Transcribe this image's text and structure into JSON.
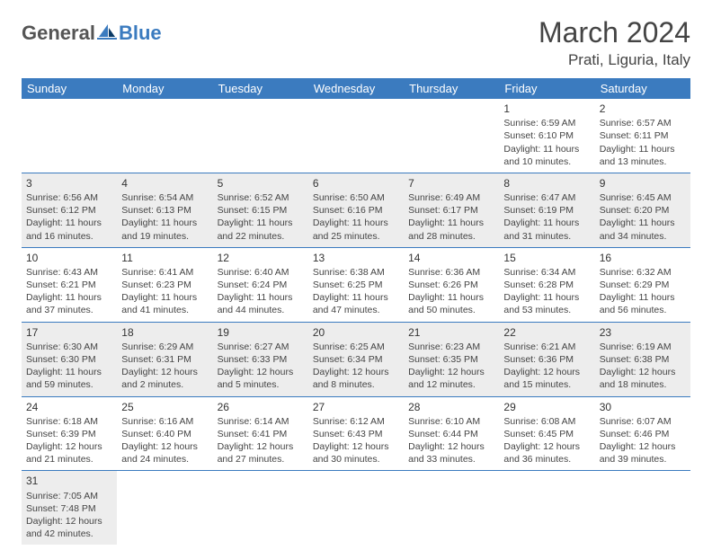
{
  "brand": {
    "part1": "General",
    "part2": "Blue",
    "part1_color": "#555555",
    "part2_color": "#3b7bbf",
    "sail_fill": "#3b7bbf",
    "sail_dark": "#0b3a66"
  },
  "title": "March 2024",
  "location": "Prati, Liguria, Italy",
  "colors": {
    "header_bg": "#3b7bbf",
    "header_text": "#ffffff",
    "row_shade": "#ededed",
    "row_plain": "#ffffff",
    "border": "#3b7bbf",
    "text": "#444444"
  },
  "weekdays": [
    "Sunday",
    "Monday",
    "Tuesday",
    "Wednesday",
    "Thursday",
    "Friday",
    "Saturday"
  ],
  "weeks": [
    {
      "shade": false,
      "cells": [
        null,
        null,
        null,
        null,
        null,
        {
          "n": "1",
          "sr": "Sunrise: 6:59 AM",
          "ss": "Sunset: 6:10 PM",
          "dl1": "Daylight: 11 hours",
          "dl2": "and 10 minutes."
        },
        {
          "n": "2",
          "sr": "Sunrise: 6:57 AM",
          "ss": "Sunset: 6:11 PM",
          "dl1": "Daylight: 11 hours",
          "dl2": "and 13 minutes."
        }
      ]
    },
    {
      "shade": true,
      "cells": [
        {
          "n": "3",
          "sr": "Sunrise: 6:56 AM",
          "ss": "Sunset: 6:12 PM",
          "dl1": "Daylight: 11 hours",
          "dl2": "and 16 minutes."
        },
        {
          "n": "4",
          "sr": "Sunrise: 6:54 AM",
          "ss": "Sunset: 6:13 PM",
          "dl1": "Daylight: 11 hours",
          "dl2": "and 19 minutes."
        },
        {
          "n": "5",
          "sr": "Sunrise: 6:52 AM",
          "ss": "Sunset: 6:15 PM",
          "dl1": "Daylight: 11 hours",
          "dl2": "and 22 minutes."
        },
        {
          "n": "6",
          "sr": "Sunrise: 6:50 AM",
          "ss": "Sunset: 6:16 PM",
          "dl1": "Daylight: 11 hours",
          "dl2": "and 25 minutes."
        },
        {
          "n": "7",
          "sr": "Sunrise: 6:49 AM",
          "ss": "Sunset: 6:17 PM",
          "dl1": "Daylight: 11 hours",
          "dl2": "and 28 minutes."
        },
        {
          "n": "8",
          "sr": "Sunrise: 6:47 AM",
          "ss": "Sunset: 6:19 PM",
          "dl1": "Daylight: 11 hours",
          "dl2": "and 31 minutes."
        },
        {
          "n": "9",
          "sr": "Sunrise: 6:45 AM",
          "ss": "Sunset: 6:20 PM",
          "dl1": "Daylight: 11 hours",
          "dl2": "and 34 minutes."
        }
      ]
    },
    {
      "shade": false,
      "cells": [
        {
          "n": "10",
          "sr": "Sunrise: 6:43 AM",
          "ss": "Sunset: 6:21 PM",
          "dl1": "Daylight: 11 hours",
          "dl2": "and 37 minutes."
        },
        {
          "n": "11",
          "sr": "Sunrise: 6:41 AM",
          "ss": "Sunset: 6:23 PM",
          "dl1": "Daylight: 11 hours",
          "dl2": "and 41 minutes."
        },
        {
          "n": "12",
          "sr": "Sunrise: 6:40 AM",
          "ss": "Sunset: 6:24 PM",
          "dl1": "Daylight: 11 hours",
          "dl2": "and 44 minutes."
        },
        {
          "n": "13",
          "sr": "Sunrise: 6:38 AM",
          "ss": "Sunset: 6:25 PM",
          "dl1": "Daylight: 11 hours",
          "dl2": "and 47 minutes."
        },
        {
          "n": "14",
          "sr": "Sunrise: 6:36 AM",
          "ss": "Sunset: 6:26 PM",
          "dl1": "Daylight: 11 hours",
          "dl2": "and 50 minutes."
        },
        {
          "n": "15",
          "sr": "Sunrise: 6:34 AM",
          "ss": "Sunset: 6:28 PM",
          "dl1": "Daylight: 11 hours",
          "dl2": "and 53 minutes."
        },
        {
          "n": "16",
          "sr": "Sunrise: 6:32 AM",
          "ss": "Sunset: 6:29 PM",
          "dl1": "Daylight: 11 hours",
          "dl2": "and 56 minutes."
        }
      ]
    },
    {
      "shade": true,
      "cells": [
        {
          "n": "17",
          "sr": "Sunrise: 6:30 AM",
          "ss": "Sunset: 6:30 PM",
          "dl1": "Daylight: 11 hours",
          "dl2": "and 59 minutes."
        },
        {
          "n": "18",
          "sr": "Sunrise: 6:29 AM",
          "ss": "Sunset: 6:31 PM",
          "dl1": "Daylight: 12 hours",
          "dl2": "and 2 minutes."
        },
        {
          "n": "19",
          "sr": "Sunrise: 6:27 AM",
          "ss": "Sunset: 6:33 PM",
          "dl1": "Daylight: 12 hours",
          "dl2": "and 5 minutes."
        },
        {
          "n": "20",
          "sr": "Sunrise: 6:25 AM",
          "ss": "Sunset: 6:34 PM",
          "dl1": "Daylight: 12 hours",
          "dl2": "and 8 minutes."
        },
        {
          "n": "21",
          "sr": "Sunrise: 6:23 AM",
          "ss": "Sunset: 6:35 PM",
          "dl1": "Daylight: 12 hours",
          "dl2": "and 12 minutes."
        },
        {
          "n": "22",
          "sr": "Sunrise: 6:21 AM",
          "ss": "Sunset: 6:36 PM",
          "dl1": "Daylight: 12 hours",
          "dl2": "and 15 minutes."
        },
        {
          "n": "23",
          "sr": "Sunrise: 6:19 AM",
          "ss": "Sunset: 6:38 PM",
          "dl1": "Daylight: 12 hours",
          "dl2": "and 18 minutes."
        }
      ]
    },
    {
      "shade": false,
      "cells": [
        {
          "n": "24",
          "sr": "Sunrise: 6:18 AM",
          "ss": "Sunset: 6:39 PM",
          "dl1": "Daylight: 12 hours",
          "dl2": "and 21 minutes."
        },
        {
          "n": "25",
          "sr": "Sunrise: 6:16 AM",
          "ss": "Sunset: 6:40 PM",
          "dl1": "Daylight: 12 hours",
          "dl2": "and 24 minutes."
        },
        {
          "n": "26",
          "sr": "Sunrise: 6:14 AM",
          "ss": "Sunset: 6:41 PM",
          "dl1": "Daylight: 12 hours",
          "dl2": "and 27 minutes."
        },
        {
          "n": "27",
          "sr": "Sunrise: 6:12 AM",
          "ss": "Sunset: 6:43 PM",
          "dl1": "Daylight: 12 hours",
          "dl2": "and 30 minutes."
        },
        {
          "n": "28",
          "sr": "Sunrise: 6:10 AM",
          "ss": "Sunset: 6:44 PM",
          "dl1": "Daylight: 12 hours",
          "dl2": "and 33 minutes."
        },
        {
          "n": "29",
          "sr": "Sunrise: 6:08 AM",
          "ss": "Sunset: 6:45 PM",
          "dl1": "Daylight: 12 hours",
          "dl2": "and 36 minutes."
        },
        {
          "n": "30",
          "sr": "Sunrise: 6:07 AM",
          "ss": "Sunset: 6:46 PM",
          "dl1": "Daylight: 12 hours",
          "dl2": "and 39 minutes."
        }
      ]
    },
    {
      "shade": true,
      "last": true,
      "cells": [
        {
          "n": "31",
          "sr": "Sunrise: 7:05 AM",
          "ss": "Sunset: 7:48 PM",
          "dl1": "Daylight: 12 hours",
          "dl2": "and 42 minutes."
        },
        null,
        null,
        null,
        null,
        null,
        null
      ]
    }
  ]
}
